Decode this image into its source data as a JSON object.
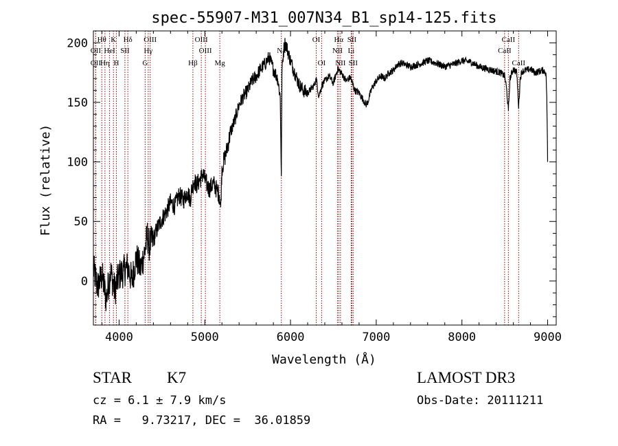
{
  "chart_data": {
    "type": "line",
    "title": "spec-55907-M31_007N34_B1_sp14-125.fits",
    "xlabel": "Wavelength (Å)",
    "ylabel": "Flux (relative)",
    "xlim": [
      3700,
      9100
    ],
    "ylim": [
      -37,
      210
    ],
    "xticks": [
      4000,
      5000,
      6000,
      7000,
      8000,
      9000
    ],
    "yticks": [
      0,
      50,
      100,
      150,
      200
    ],
    "xtick_labels": [
      "4000",
      "5000",
      "6000",
      "7000",
      "8000",
      "9000"
    ],
    "ytick_labels": [
      "0",
      "50",
      "100",
      "150",
      "200"
    ],
    "grid": false,
    "line_color": "#000000",
    "marker_color": "#8b0000",
    "series": [
      {
        "x": [
          3700,
          3750,
          3800,
          3850,
          3900,
          3950,
          4000,
          4050,
          4100,
          4150,
          4200,
          4250,
          4300,
          4330,
          4350,
          4400,
          4450,
          4500,
          4550,
          4600,
          4650,
          4700,
          4750,
          4800,
          4830,
          4850,
          4860,
          4870,
          4880,
          4900,
          4950,
          4980,
          5000,
          5050,
          5100,
          5150,
          5170,
          5185,
          5200,
          5250,
          5300,
          5350,
          5400,
          5450,
          5500,
          5550,
          5600,
          5650,
          5700,
          5750,
          5800,
          5850,
          5880,
          5893,
          5900,
          5915,
          5930,
          5950,
          5980,
          6000,
          6050,
          6100,
          6150,
          6200,
          6250,
          6280,
          6300,
          6330,
          6370,
          6400,
          6450,
          6500,
          6550,
          6600,
          6650,
          6700,
          6750,
          6800,
          6850,
          6880,
          6900,
          6950,
          7000,
          7050,
          7100,
          7150,
          7200,
          7250,
          7300,
          7400,
          7500,
          7600,
          7700,
          7800,
          7900,
          8000,
          8100,
          8200,
          8300,
          8400,
          8450,
          8500,
          8520,
          8542,
          8560,
          8600,
          8640,
          8662,
          8680,
          8700,
          8750,
          8800,
          8850,
          8900,
          8950,
          8980,
          8990,
          8995,
          9000
        ],
        "y": [
          10,
          -5,
          5,
          -15,
          8,
          -8,
          5,
          8,
          12,
          0,
          20,
          10,
          25,
          38,
          30,
          35,
          45,
          52,
          58,
          66,
          63,
          72,
          68,
          75,
          68,
          78,
          80,
          82,
          85,
          80,
          86,
          90,
          85,
          77,
          82,
          75,
          72,
          62,
          95,
          108,
          125,
          135,
          148,
          155,
          160,
          168,
          172,
          178,
          182,
          188,
          178,
          170,
          155,
          88,
          175,
          190,
          200,
          198,
          190,
          185,
          175,
          165,
          160,
          158,
          162,
          165,
          170,
          155,
          165,
          168,
          172,
          166,
          178,
          174,
          168,
          171,
          160,
          158,
          152,
          148,
          150,
          162,
          168,
          172,
          170,
          175,
          177,
          182,
          183,
          180,
          182,
          185,
          183,
          180,
          182,
          185,
          184,
          180,
          178,
          176,
          175,
          172,
          162,
          143,
          170,
          178,
          175,
          146,
          170,
          176,
          177,
          178,
          175,
          176,
          177,
          175,
          155,
          130,
          100
        ]
      }
    ],
    "lines": [
      {
        "label": "Hθ",
        "x": 3798,
        "row": 1
      },
      {
        "label": "OII",
        "x": 3727,
        "row": 2
      },
      {
        "label": "OII",
        "x": 3727,
        "row": 3
      },
      {
        "label": "Hη",
        "x": 3835,
        "row": 3
      },
      {
        "label": "K",
        "x": 3934,
        "row": 1
      },
      {
        "label": "HeI",
        "x": 3889,
        "row": 2
      },
      {
        "label": "H",
        "x": 3968,
        "row": 3
      },
      {
        "label": "SII",
        "x": 4068,
        "row": 2
      },
      {
        "label": "Hδ",
        "x": 4102,
        "row": 1
      },
      {
        "label": "OIII",
        "x": 4363,
        "row": 1
      },
      {
        "label": "Hγ",
        "x": 4340,
        "row": 2
      },
      {
        "label": "G",
        "x": 4304,
        "row": 3
      },
      {
        "label": "OIII",
        "x": 4959,
        "row": 1
      },
      {
        "label": "OIII",
        "x": 5007,
        "row": 2
      },
      {
        "label": "Hβ",
        "x": 4861,
        "row": 3
      },
      {
        "label": "Mg",
        "x": 5175,
        "row": 3
      },
      {
        "label": "Na",
        "x": 5893,
        "row": 2
      },
      {
        "label": "OI",
        "x": 6300,
        "row": 1
      },
      {
        "label": "OI",
        "x": 6363,
        "row": 3
      },
      {
        "label": "Hα",
        "x": 6563,
        "row": 1
      },
      {
        "label": "NII",
        "x": 6548,
        "row": 2
      },
      {
        "label": "NII",
        "x": 6583,
        "row": 3
      },
      {
        "label": "SII",
        "x": 6716,
        "row": 1
      },
      {
        "label": "Li",
        "x": 6708,
        "row": 2
      },
      {
        "label": "SII",
        "x": 6731,
        "row": 3
      },
      {
        "label": "CaII",
        "x": 8542,
        "row": 1
      },
      {
        "label": "CaII",
        "x": 8498,
        "row": 2
      },
      {
        "label": "CaII",
        "x": 8662,
        "row": 3
      }
    ]
  },
  "info": {
    "class_label": "STAR",
    "subclass": "K7",
    "survey": "LAMOST DR3",
    "cz_text": "cz = 6.1 ± 7.9 km/s",
    "obs_date_text": "Obs-Date: 20111211",
    "coord_text": "RA =   9.73217, DEC =  36.01859"
  }
}
